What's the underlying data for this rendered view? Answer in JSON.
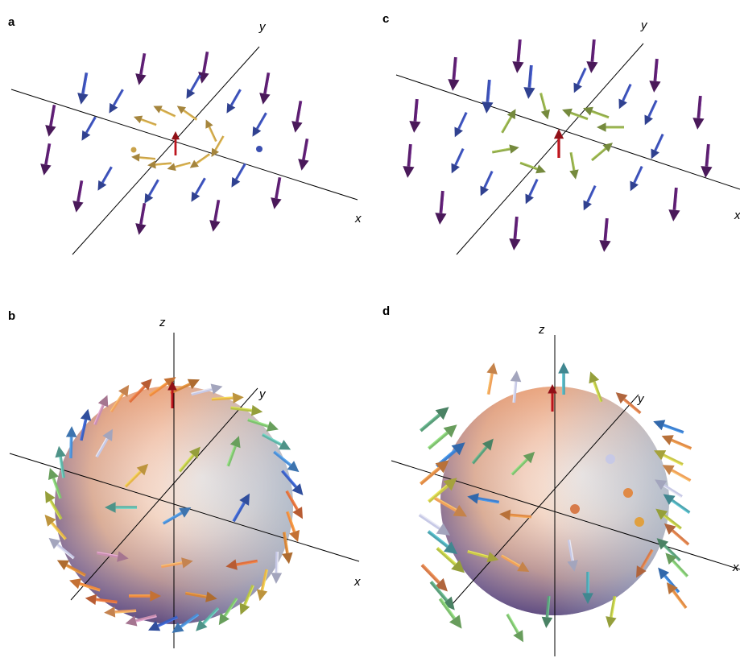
{
  "panels": [
    {
      "id": "a",
      "label": "a",
      "axis_labels": {
        "x": "x",
        "y": "y"
      }
    },
    {
      "id": "b",
      "label": "b",
      "axis_labels": {
        "x": "x",
        "y": "y",
        "z": "z"
      }
    },
    {
      "id": "c",
      "label": "c",
      "axis_labels": {
        "x": "x",
        "y": "y"
      }
    },
    {
      "id": "d",
      "label": "d",
      "axis_labels": {
        "x": "x",
        "y": "y",
        "z": "z"
      }
    }
  ],
  "colors": {
    "deep_purple": "#5a1e6e",
    "blue": "#3b4fb0",
    "gold": "#c9a24a",
    "olive_green": "#8fa84a",
    "red": "#b0141c",
    "sphere_top": "#f2a57a",
    "sphere_bottom": "#5b4a86",
    "sphere_highlight": "#fdf4e8",
    "sphere_right": "#a9c9e8"
  }
}
